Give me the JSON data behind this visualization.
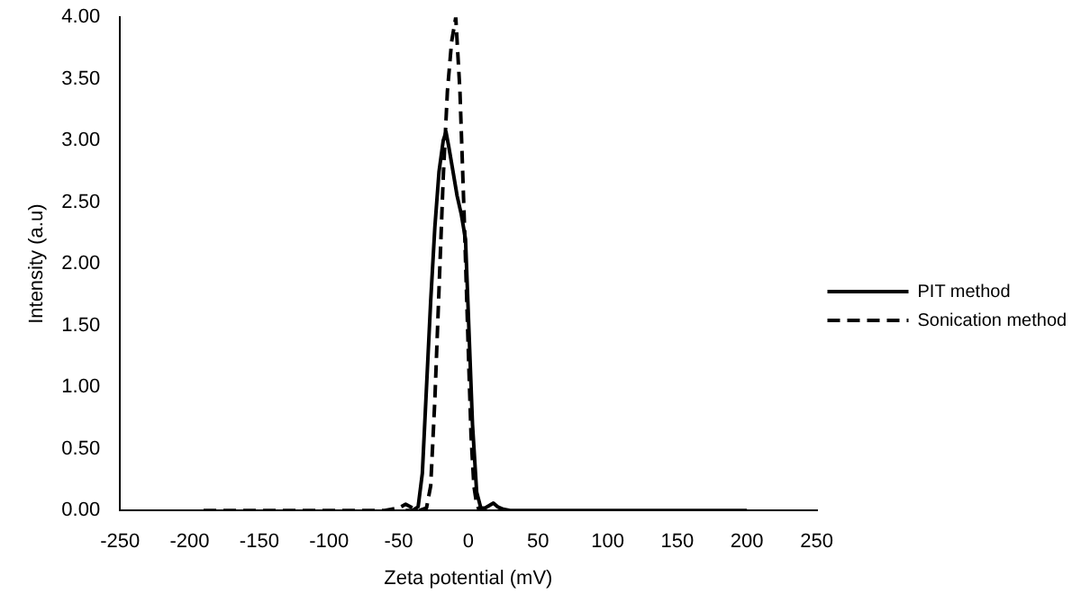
{
  "chart_data": {
    "type": "line",
    "xlabel": "Zeta potential (mV)",
    "ylabel": "Intensity (a.u)",
    "xlim": [
      -250,
      250
    ],
    "xticks": [
      -250,
      -200,
      -150,
      -100,
      -50,
      0,
      50,
      100,
      150,
      200,
      250
    ],
    "ylim": [
      0,
      4
    ],
    "yticks": [
      {
        "value": 0,
        "label": "0.00"
      },
      {
        "value": 0.5,
        "label": "0.50"
      },
      {
        "value": 1,
        "label": "1.00"
      },
      {
        "value": 1.5,
        "label": "1.50"
      },
      {
        "value": 2,
        "label": "2.00"
      },
      {
        "value": 2.5,
        "label": "2.50"
      },
      {
        "value": 3,
        "label": "3.00"
      },
      {
        "value": 3.5,
        "label": "3.50"
      },
      {
        "value": 4,
        "label": "4.00"
      }
    ],
    "grid": false,
    "legend": "right",
    "marker": "none",
    "series": [
      {
        "name": "PIT method",
        "color": "#000000",
        "line_style": "solid",
        "x": [
          -45,
          -40,
          -36,
          -33,
          -30,
          -27,
          -24,
          -21,
          -18,
          -16,
          -14,
          -11,
          -8,
          -5,
          -2,
          0,
          3,
          6,
          9,
          12,
          15,
          18,
          21,
          25,
          30,
          50,
          100,
          150,
          200
        ],
        "values": [
          0,
          0,
          0.03,
          0.3,
          1.0,
          1.7,
          2.3,
          2.75,
          3.0,
          3.07,
          2.95,
          2.75,
          2.55,
          2.4,
          2.2,
          1.6,
          0.7,
          0.15,
          0.02,
          0.02,
          0.04,
          0.06,
          0.03,
          0.01,
          0,
          0,
          0,
          0,
          0
        ]
      },
      {
        "name": "Sonication method",
        "color": "#000000",
        "line_style": "dashed",
        "x": [
          -190,
          -150,
          -100,
          -60,
          -50,
          -45,
          -40,
          -35,
          -30,
          -27,
          -24,
          -21,
          -18,
          -15,
          -12,
          -9,
          -6,
          -3,
          0,
          2,
          4,
          6,
          8,
          10
        ],
        "values": [
          0,
          0,
          0,
          0,
          0.02,
          0.05,
          0.02,
          0,
          0.02,
          0.2,
          0.9,
          1.8,
          2.7,
          3.4,
          3.8,
          4.0,
          3.4,
          2.4,
          1.3,
          0.6,
          0.2,
          0.05,
          0,
          0
        ]
      }
    ]
  }
}
